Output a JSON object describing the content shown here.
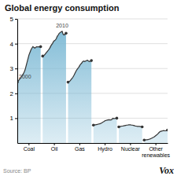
{
  "chart_data": {
    "type": "area",
    "title": "Global energy consumption",
    "categories": [
      "Coal",
      "Oil",
      "Gas",
      "Hydro",
      "Nuclear",
      "Other\nrenewables"
    ],
    "values": [
      [
        2.45,
        2.5,
        2.55,
        2.6,
        2.65,
        2.72,
        2.78,
        2.85,
        2.95,
        3.1,
        3.25,
        3.4,
        3.55,
        3.65,
        3.75,
        3.82,
        3.88,
        3.85,
        3.82,
        3.85,
        3.88,
        3.87,
        3.88,
        3.87,
        3.88
      ],
      [
        3.5,
        3.52,
        3.55,
        3.6,
        3.65,
        3.7,
        3.75,
        3.8,
        3.88,
        3.95,
        4.0,
        4.08,
        4.12,
        4.15,
        4.2,
        4.3,
        4.35,
        4.42,
        4.45,
        4.48,
        4.5,
        4.38,
        4.35,
        4.38,
        4.42
      ],
      [
        2.45,
        2.48,
        2.5,
        2.55,
        2.6,
        2.65,
        2.72,
        2.8,
        2.88,
        2.95,
        3.0,
        3.05,
        3.12,
        3.18,
        3.22,
        3.28,
        3.3,
        3.28,
        3.3,
        3.32,
        3.33,
        3.3,
        3.28,
        3.3,
        3.32
      ],
      [
        0.72,
        0.73,
        0.73,
        0.74,
        0.75,
        0.76,
        0.77,
        0.78,
        0.8,
        0.82,
        0.85,
        0.87,
        0.9,
        0.91,
        0.92,
        0.93,
        0.94,
        0.93,
        0.93,
        0.95,
        1.0,
        0.98,
        0.99,
        1.0,
        1.0
      ],
      [
        0.65,
        0.66,
        0.67,
        0.68,
        0.68,
        0.69,
        0.7,
        0.71,
        0.72,
        0.72,
        0.73,
        0.73,
        0.73,
        0.72,
        0.72,
        0.71,
        0.7,
        0.68,
        0.68,
        0.67,
        0.67,
        0.67,
        0.66,
        0.66,
        0.65
      ],
      [
        0.12,
        0.12,
        0.13,
        0.13,
        0.14,
        0.15,
        0.16,
        0.18,
        0.2,
        0.22,
        0.24,
        0.27,
        0.3,
        0.33,
        0.37,
        0.41,
        0.45,
        0.47,
        0.48,
        0.49,
        0.5,
        0.49,
        0.49,
        0.5,
        0.52
      ]
    ],
    "color": "#7ab8d4",
    "ylim": [
      0,
      5
    ],
    "yticks": [
      1,
      2,
      3,
      4,
      5
    ],
    "grid": true,
    "annotations": [
      "2000",
      "2010"
    ],
    "source": "Source: BP",
    "watermark": "Vox"
  }
}
